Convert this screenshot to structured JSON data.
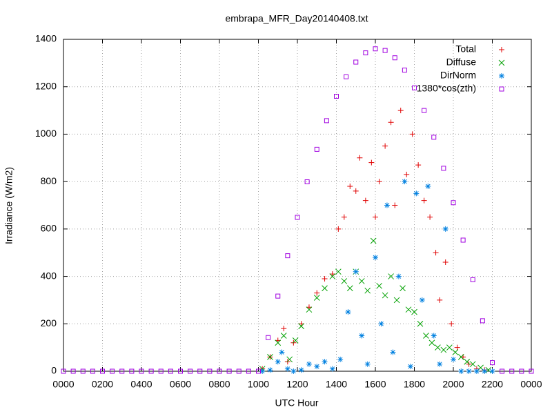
{
  "chart_data": {
    "type": "scatter",
    "title": "embrapa_MFR_Day20140408.txt",
    "xlabel": "UTC Hour",
    "ylabel": "Irradiance (W/m2)",
    "xlim": [
      0,
      24
    ],
    "ylim": [
      0,
      1400
    ],
    "xticks": [
      {
        "value": 0,
        "label": "0000"
      },
      {
        "value": 2,
        "label": "0200"
      },
      {
        "value": 4,
        "label": "0400"
      },
      {
        "value": 6,
        "label": "0600"
      },
      {
        "value": 8,
        "label": "0800"
      },
      {
        "value": 10,
        "label": "1000"
      },
      {
        "value": 12,
        "label": "1200"
      },
      {
        "value": 14,
        "label": "1400"
      },
      {
        "value": 16,
        "label": "1600"
      },
      {
        "value": 18,
        "label": "1800"
      },
      {
        "value": 20,
        "label": "2000"
      },
      {
        "value": 22,
        "label": "2200"
      },
      {
        "value": 24,
        "label": "0000"
      }
    ],
    "yticks": [
      0,
      200,
      400,
      600,
      800,
      1000,
      1200,
      1400
    ],
    "grid": true,
    "legend": "top-right",
    "series": [
      {
        "name": "Total",
        "color": "#e00000",
        "marker": "plus",
        "x": [
          10.2,
          10.6,
          11.0,
          11.3,
          11.5,
          11.8,
          12.2,
          12.6,
          13.0,
          13.4,
          13.8,
          14.1,
          14.4,
          14.7,
          15.0,
          15.2,
          15.5,
          15.8,
          16.0,
          16.2,
          16.5,
          16.8,
          17.0,
          17.3,
          17.6,
          17.9,
          18.2,
          18.5,
          18.8,
          19.1,
          19.3,
          19.6,
          19.9,
          20.2,
          20.5,
          20.8,
          21.2,
          21.6
        ],
        "values": [
          10,
          60,
          130,
          180,
          40,
          120,
          200,
          270,
          330,
          390,
          410,
          600,
          650,
          780,
          760,
          900,
          720,
          880,
          650,
          800,
          950,
          1050,
          700,
          1100,
          830,
          1000,
          870,
          720,
          650,
          500,
          300,
          460,
          200,
          100,
          60,
          30,
          10,
          5
        ]
      },
      {
        "name": "Diffuse",
        "color": "#00a000",
        "marker": "cross",
        "x": [
          10.2,
          10.6,
          11.0,
          11.3,
          11.6,
          11.9,
          12.2,
          12.6,
          13.0,
          13.4,
          13.8,
          14.1,
          14.4,
          14.7,
          15.0,
          15.3,
          15.6,
          15.9,
          16.2,
          16.5,
          16.8,
          17.1,
          17.4,
          17.7,
          18.0,
          18.3,
          18.6,
          18.9,
          19.2,
          19.5,
          19.8,
          20.1,
          20.4,
          20.7,
          21.0,
          21.4,
          21.8
        ],
        "values": [
          10,
          60,
          120,
          150,
          50,
          130,
          190,
          260,
          310,
          350,
          400,
          420,
          380,
          350,
          420,
          380,
          340,
          550,
          360,
          320,
          400,
          300,
          350,
          260,
          250,
          200,
          150,
          120,
          100,
          90,
          100,
          80,
          60,
          40,
          30,
          15,
          5
        ]
      },
      {
        "name": "DirNorm",
        "color": "#0080e0",
        "marker": "star",
        "x": [
          10.2,
          10.6,
          11.0,
          11.2,
          11.5,
          11.8,
          12.2,
          12.6,
          13.0,
          13.4,
          13.8,
          14.2,
          14.6,
          15.0,
          15.3,
          15.6,
          16.0,
          16.3,
          16.6,
          16.9,
          17.2,
          17.5,
          17.8,
          18.1,
          18.4,
          18.7,
          19.0,
          19.3,
          19.6,
          20.0,
          20.4,
          20.8,
          21.2,
          21.6,
          22.0
        ],
        "values": [
          0,
          5,
          40,
          80,
          10,
          0,
          5,
          30,
          20,
          40,
          10,
          50,
          250,
          420,
          150,
          30,
          480,
          200,
          700,
          80,
          400,
          800,
          20,
          750,
          300,
          780,
          150,
          30,
          600,
          50,
          0,
          0,
          0,
          0,
          0
        ]
      },
      {
        "name": "1380*cos(zth)",
        "color": "#a000e0",
        "marker": "square",
        "x": [
          0,
          0.5,
          1,
          1.5,
          2,
          2.5,
          3,
          3.5,
          4,
          4.5,
          5,
          5.5,
          6,
          6.5,
          7,
          7.5,
          8,
          8.5,
          9,
          9.5,
          10,
          10.5,
          11,
          11.5,
          12,
          12.5,
          13,
          13.5,
          14,
          14.5,
          15,
          15.5,
          16,
          16.5,
          17,
          17.5,
          18,
          18.5,
          19,
          19.5,
          20,
          20.5,
          21,
          21.5,
          22,
          22.5,
          23,
          23.5,
          24
        ],
        "values": [
          0,
          0,
          0,
          0,
          0,
          0,
          0,
          0,
          0,
          0,
          0,
          0,
          0,
          0,
          0,
          0,
          0,
          0,
          0,
          0,
          0,
          142,
          317,
          487,
          649,
          799,
          936,
          1057,
          1160,
          1242,
          1304,
          1343,
          1360,
          1353,
          1322,
          1270,
          1195,
          1100,
          987,
          856,
          711,
          553,
          386,
          213,
          36,
          0,
          0,
          0,
          0
        ]
      }
    ]
  }
}
